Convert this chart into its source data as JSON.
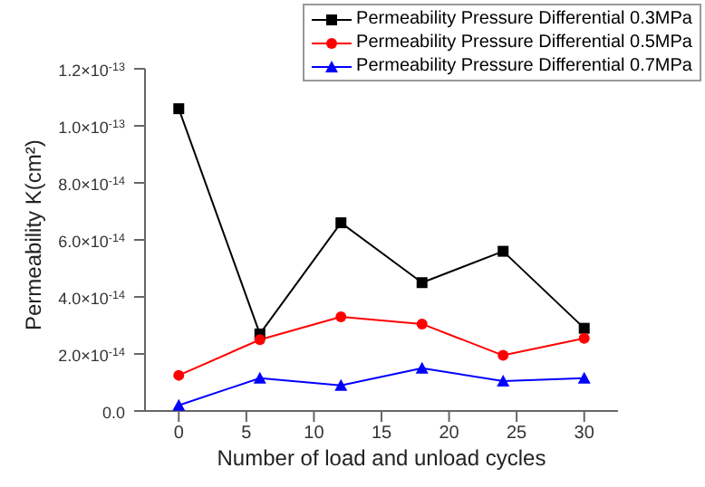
{
  "chart_data": {
    "type": "line",
    "xlabel": "Number of load and unload cycles",
    "ylabel": "Permeability K(cm²)",
    "x": [
      0,
      6,
      12,
      18,
      24,
      30
    ],
    "series": [
      {
        "name": "Permeability Pressure Differential 0.3MPa",
        "color": "#000000",
        "marker": "square",
        "values": [
          1.06e-13,
          2.7e-14,
          6.6e-14,
          4.5e-14,
          5.6e-14,
          2.9e-14
        ]
      },
      {
        "name": "Permeability Pressure Differential 0.5MPa",
        "color": "#ff0000",
        "marker": "circle",
        "values": [
          1.25e-14,
          2.5e-14,
          3.3e-14,
          3.05e-14,
          1.95e-14,
          2.55e-14
        ]
      },
      {
        "name": "Permeability Pressure Differential 0.7MPa",
        "color": "#0000ff",
        "marker": "triangle",
        "values": [
          2e-15,
          1.15e-14,
          9e-15,
          1.5e-14,
          1.05e-14,
          1.15e-14
        ]
      }
    ],
    "xlim": [
      -2.5,
      32.5
    ],
    "xticks": [
      0,
      5,
      10,
      15,
      20,
      25,
      30
    ],
    "ylim": [
      0,
      1.2e-13
    ],
    "yticks": [
      {
        "value": 0,
        "label": "0.0"
      },
      {
        "value": 2e-14,
        "label": "2.0×10$^{-14}$"
      },
      {
        "value": 4e-14,
        "label": "4.0×10$^{-14}$"
      },
      {
        "value": 6e-14,
        "label": "6.0×10$^{-14}$"
      },
      {
        "value": 8e-14,
        "label": "8.0×10$^{-14}$"
      },
      {
        "value": 1e-13,
        "label": "1.0×10$^{-13}$"
      },
      {
        "value": 1.2e-13,
        "label": "1.2×10$^{-13}$"
      }
    ],
    "grid": false,
    "legend": "top right",
    "line_style": "solid"
  }
}
